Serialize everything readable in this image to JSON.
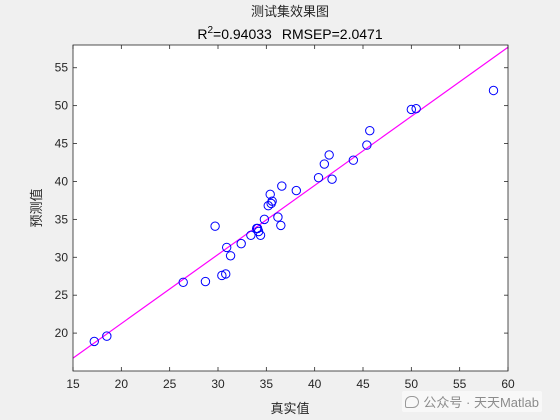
{
  "chart_data": {
    "type": "scatter",
    "title": "测试集效果图",
    "subtitle_parts": {
      "r_prefix": "R",
      "r_exponent": "2",
      "r_value": "=0.94033",
      "rmsep": "RMSEP=2.0471"
    },
    "xlabel": "真实值",
    "ylabel": "预测值",
    "xlim": [
      15,
      60
    ],
    "ylim": [
      15,
      58
    ],
    "xticks": [
      15,
      20,
      25,
      30,
      35,
      40,
      45,
      50,
      55,
      60
    ],
    "yticks": [
      20,
      25,
      30,
      35,
      40,
      45,
      50,
      55
    ],
    "grid": false,
    "marker": "open-circle",
    "fit_line": {
      "x": [
        15,
        60
      ],
      "y": [
        16.7,
        57.7
      ]
    },
    "points": {
      "x": [
        17.2,
        18.5,
        26.4,
        28.7,
        29.7,
        30.4,
        30.8,
        30.9,
        31.3,
        32.4,
        33.4,
        34.0,
        34.1,
        34.2,
        34.4,
        34.8,
        35.2,
        35.4,
        35.6,
        35.5,
        36.2,
        36.6,
        36.5,
        38.1,
        40.4,
        41.0,
        41.5,
        41.8,
        44.0,
        45.4,
        45.7,
        50.0,
        50.5,
        58.5
      ],
      "y": [
        18.9,
        19.6,
        26.7,
        26.8,
        34.1,
        27.6,
        27.8,
        31.3,
        30.2,
        31.8,
        32.9,
        33.8,
        33.8,
        33.4,
        32.9,
        35.0,
        36.8,
        38.3,
        37.4,
        37.1,
        35.3,
        39.4,
        34.2,
        38.8,
        40.5,
        42.3,
        43.5,
        40.3,
        42.8,
        44.8,
        46.7,
        49.5,
        49.6,
        52.0
      ]
    },
    "colors": {
      "marker": "#0000ff",
      "fit_line": "#ff00ff",
      "axes": "#262626",
      "plot_bg": "#ffffff",
      "figure_bg": "#f0f0f0"
    }
  },
  "watermark": {
    "text": "公众号 · 天天Matlab",
    "icon": "wechat-icon"
  }
}
